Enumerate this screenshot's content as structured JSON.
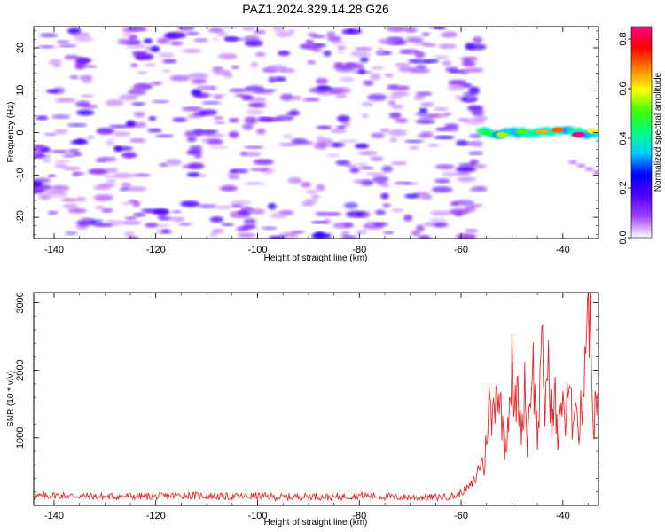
{
  "title": "PAZ1.2024.329.14.28.G26",
  "chart_data": [
    {
      "type": "heatmap",
      "title": "PAZ1.2024.329.14.28.G26",
      "xlabel": "Height of straight line (km)",
      "ylabel": "Frequency (Hz)",
      "xlim": [
        -144,
        -33
      ],
      "ylim": [
        -25,
        25
      ],
      "xticks": [
        -140,
        -120,
        -100,
        -80,
        -60,
        -40
      ],
      "yticks": [
        -20,
        -10,
        0,
        10,
        20
      ],
      "description_regions": [
        {
          "x_range": [
            -144,
            -56
          ],
          "y_range": [
            -25,
            25
          ],
          "pattern": "scattered low-amplitude noise",
          "amplitude_range": [
            0.0,
            0.15
          ]
        },
        {
          "x_range": [
            -56,
            -33
          ],
          "y_range": [
            -1.5,
            1.5
          ],
          "pattern": "narrow band near 0 Hz",
          "amplitude_range": [
            0.3,
            0.85
          ]
        },
        {
          "x_range": [
            -38,
            -30
          ],
          "y_range": [
            -11,
            -7
          ],
          "pattern": "weak diagonal trace",
          "amplitude_range": [
            0.02,
            0.06
          ]
        }
      ],
      "band_peaks": [
        {
          "x": -55,
          "y": 0.0,
          "value": 0.45
        },
        {
          "x": -52,
          "y": -0.5,
          "value": 0.55
        },
        {
          "x": -48,
          "y": 0.2,
          "value": 0.5
        },
        {
          "x": -44,
          "y": 0.3,
          "value": 0.65
        },
        {
          "x": -41,
          "y": 0.6,
          "value": 0.7
        },
        {
          "x": -37,
          "y": -0.5,
          "value": 0.85
        },
        {
          "x": -34,
          "y": 0.4,
          "value": 0.6
        }
      ],
      "colorbar": {
        "label": "Normalized spectral amplitude",
        "min": 0.0,
        "max": 0.85,
        "ticks": [
          "0.0",
          "0.2",
          "0.4",
          "0.6",
          "0.8"
        ],
        "colors": [
          "#ffffff",
          "#a040ff",
          "#5000ff",
          "#0000ff",
          "#00d0ff",
          "#00ff80",
          "#40ff00",
          "#ffff00",
          "#ff8000",
          "#ff0000",
          "#ff0080"
        ]
      }
    },
    {
      "type": "line",
      "xlabel": "Height of straight line (km)",
      "ylabel": "SNR (10 * v/v)",
      "xlim": [
        -144,
        -33
      ],
      "ylim": [
        0,
        3150
      ],
      "xticks": [
        -140,
        -120,
        -100,
        -80,
        -60,
        -40
      ],
      "yticks": [
        1000,
        2000,
        3000
      ],
      "series": [
        {
          "color": "#e8282a",
          "x": [
            -144,
            -140,
            -135,
            -130,
            -125,
            -120,
            -115,
            -110,
            -105,
            -100,
            -95,
            -90,
            -85,
            -80,
            -75,
            -70,
            -65,
            -61,
            -58,
            -57,
            -56,
            -55.5,
            -54.5,
            -54,
            -53,
            -52,
            -51.5,
            -51,
            -50,
            -49.5,
            -49,
            -48,
            -47.5,
            -47,
            -46,
            -45.5,
            -45,
            -44,
            -43.5,
            -43,
            -42,
            -41.5,
            -41,
            -40,
            -39.5,
            -39,
            -38,
            -37.5,
            -37,
            -36,
            -35.5,
            -35,
            -34.5,
            -34,
            -33.5,
            -33
          ],
          "y": [
            130,
            150,
            140,
            130,
            140,
            130,
            150,
            140,
            130,
            140,
            120,
            140,
            120,
            150,
            130,
            120,
            120,
            140,
            300,
            420,
            700,
            500,
            1550,
            1200,
            1850,
            1300,
            900,
            1100,
            2050,
            1300,
            1700,
            1100,
            1900,
            900,
            2200,
            1600,
            1000,
            2300,
            1400,
            2100,
            1200,
            1600,
            900,
            1800,
            1100,
            1700,
            1200,
            2000,
            1000,
            1700,
            2600,
            3150,
            2300,
            1200,
            1500,
            1300
          ]
        }
      ]
    }
  ]
}
